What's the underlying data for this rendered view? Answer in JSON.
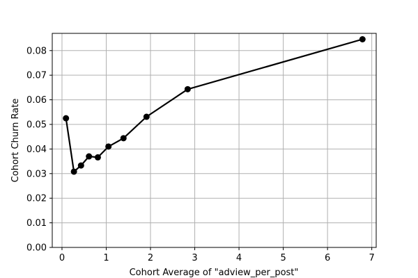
{
  "chart_data": {
    "type": "line",
    "title": "",
    "xlabel": "Cohort Average of  \"adview_per_post\"",
    "ylabel": "Cohort Churn Rate",
    "xlim": [
      -0.22,
      7.1
    ],
    "ylim": [
      0.0,
      0.087
    ],
    "xticks": [
      0,
      1,
      2,
      3,
      4,
      5,
      6,
      7
    ],
    "xtick_labels": [
      "0",
      "1",
      "2",
      "3",
      "4",
      "5",
      "6",
      "7"
    ],
    "yticks": [
      0.0,
      0.01,
      0.02,
      0.03,
      0.04,
      0.05,
      0.06,
      0.07,
      0.08
    ],
    "ytick_labels": [
      "0.00",
      "0.01",
      "0.02",
      "0.03",
      "0.04",
      "0.05",
      "0.06",
      "0.07",
      "0.08"
    ],
    "grid": true,
    "line_color": "#000000",
    "x": [
      0.09,
      0.27,
      0.43,
      0.61,
      0.81,
      1.05,
      1.39,
      1.91,
      2.84,
      6.79
    ],
    "y": [
      0.0525,
      0.0308,
      0.0333,
      0.037,
      0.0366,
      0.041,
      0.0444,
      0.0531,
      0.0643,
      0.0846
    ]
  }
}
